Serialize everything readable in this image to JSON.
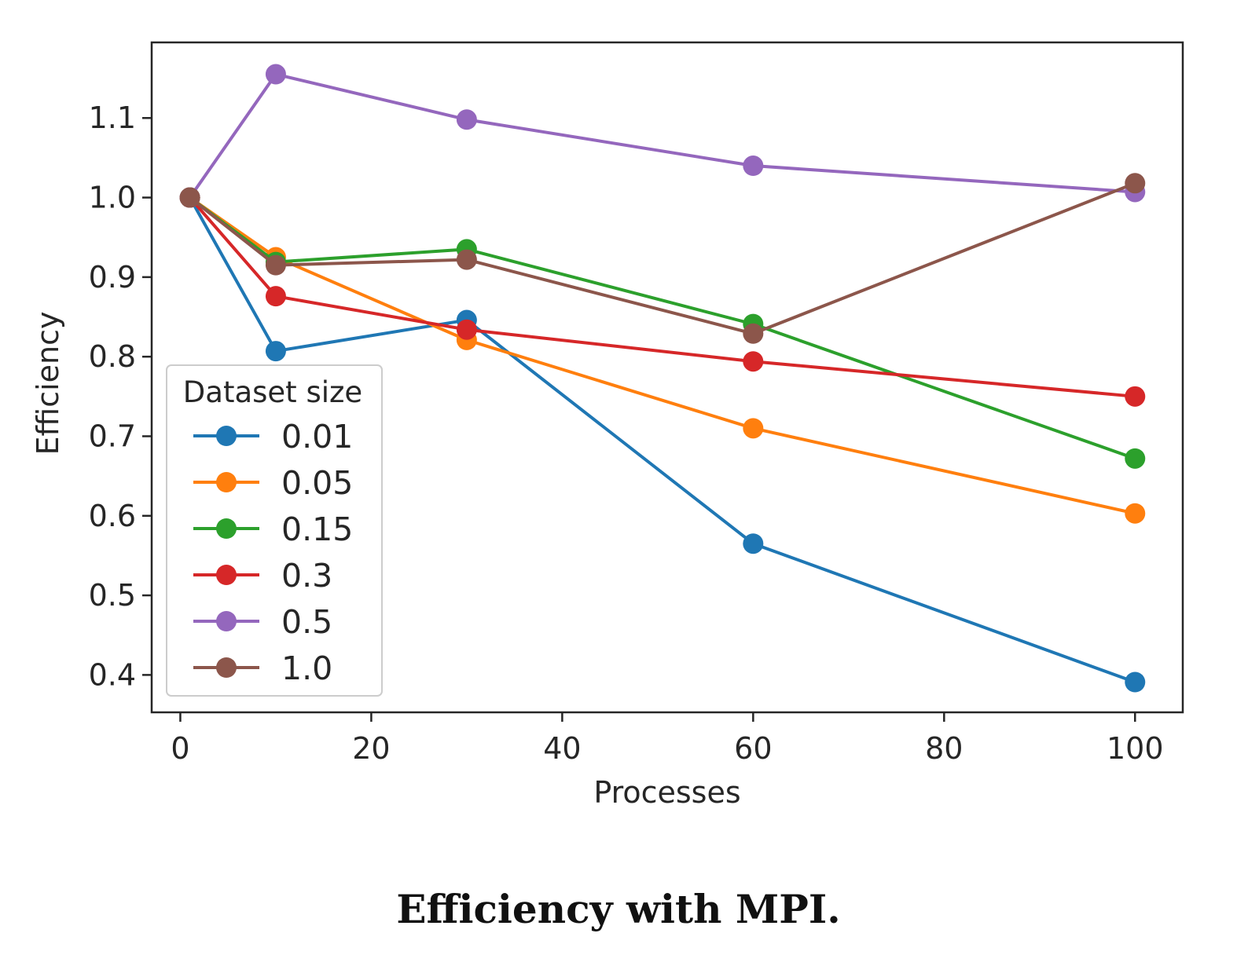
{
  "caption": "Efficiency with MPI.",
  "chart_data": {
    "type": "line",
    "xlabel": "Processes",
    "ylabel": "Efficiency",
    "x": [
      1,
      10,
      30,
      60,
      100
    ],
    "xlim": [
      -3,
      105
    ],
    "ylim": [
      0.353,
      1.195
    ],
    "xticks": [
      0,
      20,
      40,
      60,
      80,
      100
    ],
    "xtick_labels": [
      "0",
      "20",
      "40",
      "60",
      "80",
      "100"
    ],
    "yticks": [
      0.4,
      0.5,
      0.6,
      0.7,
      0.8,
      0.9,
      1.0,
      1.1
    ],
    "ytick_labels": [
      "0.4",
      "0.5",
      "0.6",
      "0.7",
      "0.8",
      "0.9",
      "1.0",
      "1.1"
    ],
    "grid": false,
    "legend": {
      "title": "Dataset size",
      "placement": "lower-left"
    },
    "series": [
      {
        "name": "0.01",
        "color": "#1f77b4",
        "values": [
          1.0,
          0.807,
          0.846,
          0.565,
          0.391
        ]
      },
      {
        "name": "0.05",
        "color": "#ff7f0e",
        "values": [
          1.0,
          0.925,
          0.821,
          0.71,
          0.603
        ]
      },
      {
        "name": "0.15",
        "color": "#2ca02c",
        "values": [
          1.0,
          0.919,
          0.935,
          0.841,
          0.672
        ]
      },
      {
        "name": "0.3",
        "color": "#d62728",
        "values": [
          1.0,
          0.876,
          0.834,
          0.794,
          0.75
        ]
      },
      {
        "name": "0.5",
        "color": "#9467bd",
        "values": [
          1.0,
          1.155,
          1.098,
          1.04,
          1.007
        ]
      },
      {
        "name": "1.0",
        "color": "#8c564b",
        "values": [
          1.0,
          0.915,
          0.922,
          0.829,
          1.018
        ]
      }
    ]
  }
}
